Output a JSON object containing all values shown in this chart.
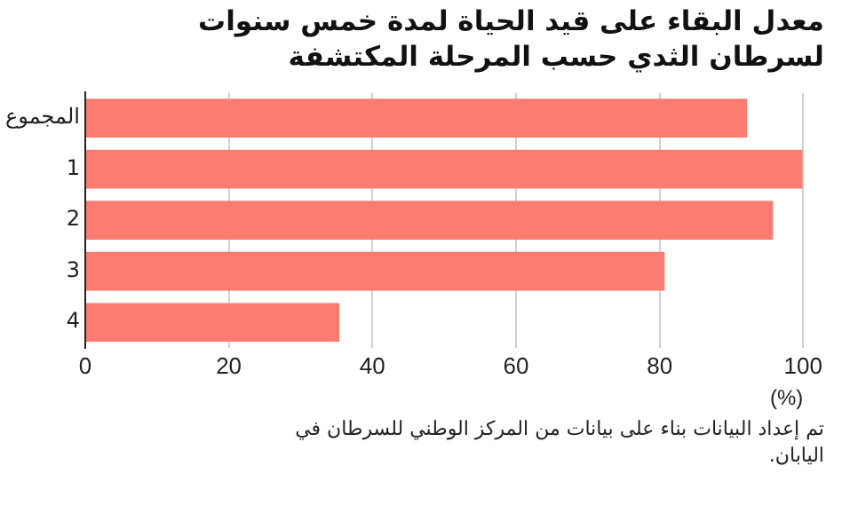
{
  "chart_data": {
    "type": "bar",
    "orientation": "horizontal",
    "title": "معدل البقاء على قيد الحياة لمدة خمس سنوات لسرطان الثدي حسب المرحلة المكتشفة",
    "categories": [
      "المجموع",
      "1",
      "2",
      "3",
      "4"
    ],
    "values": [
      92.2,
      99.9,
      95.8,
      80.7,
      35.4
    ],
    "color": "#fa7b6f",
    "xlim": [
      0,
      100
    ],
    "xticks": [
      0,
      20,
      40,
      60,
      80,
      100
    ],
    "xlabel": "(%)",
    "grid": "x",
    "legend": false,
    "annotations": [
      "تم إعداد البيانات بناء على بيانات من المركز الوطني للسرطان في اليابان."
    ]
  }
}
